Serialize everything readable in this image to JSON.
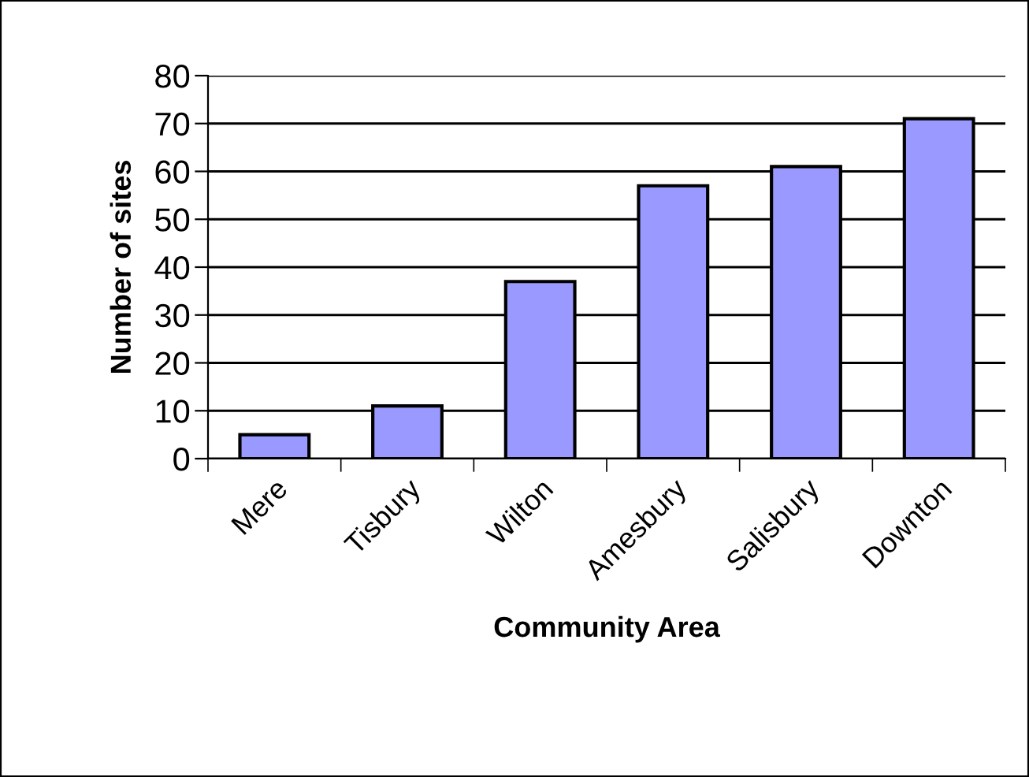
{
  "chart_data": {
    "type": "bar",
    "xlabel": "Community Area",
    "ylabel": "Number of sites",
    "categories": [
      "Mere",
      "Tisbury",
      "Wilton",
      "Amesbury",
      "Salisbury",
      "Downton"
    ],
    "values": [
      5,
      11,
      37,
      57,
      61,
      71
    ],
    "color": "#9999ff",
    "ylim": [
      0,
      80
    ],
    "yticks": [
      0,
      10,
      20,
      30,
      40,
      50,
      60,
      70,
      80
    ],
    "grid": "y",
    "legend": false
  }
}
